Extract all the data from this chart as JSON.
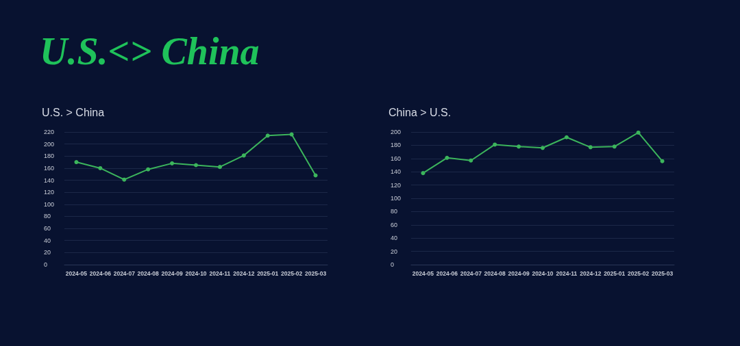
{
  "chart_data": [
    {
      "type": "line",
      "title": "U.S. > China",
      "annotations": [
        "U.S.<> China"
      ],
      "categories": [
        "2024-05",
        "2024-06",
        "2024-07",
        "2024-08",
        "2024-09",
        "2024-10",
        "2024-11",
        "2024-12",
        "2025-01",
        "2025-02",
        "2025-03"
      ],
      "series": [
        {
          "color": "#3cb55c",
          "values": [
            170,
            160,
            141,
            158,
            168,
            165,
            162,
            181,
            214,
            216,
            148
          ]
        }
      ],
      "ylim": [
        0,
        220
      ],
      "yticks": [
        0,
        20,
        40,
        60,
        80,
        100,
        120,
        140,
        160,
        180,
        200,
        220
      ],
      "grid": "y",
      "marker": "circle",
      "line_style": "solid"
    },
    {
      "type": "line",
      "title": "China > U.S.",
      "categories": [
        "2024-05",
        "2024-06",
        "2024-07",
        "2024-08",
        "2024-09",
        "2024-10",
        "2024-11",
        "2024-12",
        "2025-01",
        "2025-02",
        "2025-03"
      ],
      "series": [
        {
          "color": "#3cb55c",
          "values": [
            138,
            161,
            157,
            181,
            178,
            176,
            192,
            177,
            178,
            199,
            156
          ]
        }
      ],
      "ylim": [
        0,
        200
      ],
      "yticks": [
        0,
        20,
        40,
        60,
        80,
        100,
        120,
        140,
        160,
        180,
        200
      ],
      "grid": "y",
      "marker": "circle",
      "line_style": "solid"
    }
  ]
}
